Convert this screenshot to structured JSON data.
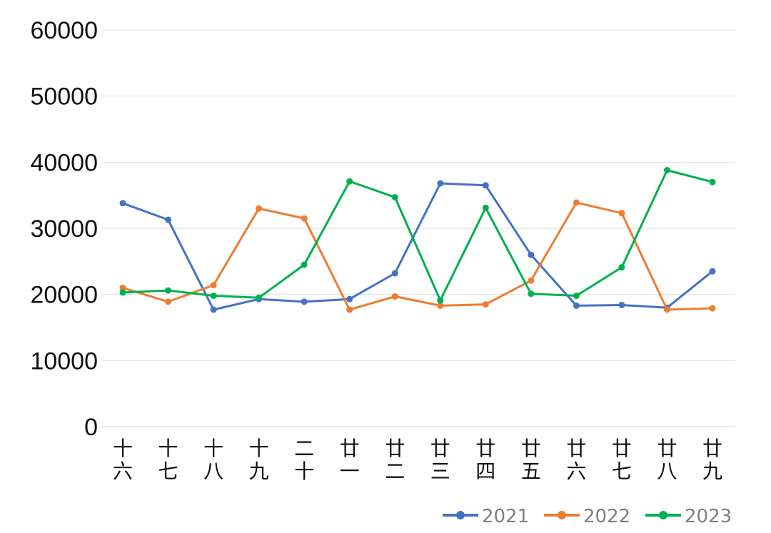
{
  "chart_data": {
    "type": "line",
    "title": "",
    "xlabel": "",
    "ylabel": "",
    "categories": [
      "十六",
      "十七",
      "十八",
      "十九",
      "二十",
      "廿一",
      "廿二",
      "廿三",
      "廿四",
      "廿五",
      "廿六",
      "廿七",
      "廿八",
      "廿九"
    ],
    "ylim": [
      0,
      60000
    ],
    "yticks": [
      "0",
      "10000",
      "20000",
      "30000",
      "40000",
      "50000",
      "60000"
    ],
    "grid": true,
    "legend_position": "bottom-right",
    "series": [
      {
        "name": "2021",
        "color": "#4472c4",
        "values": [
          33800,
          31300,
          17700,
          19300,
          18900,
          19300,
          23200,
          36800,
          36500,
          26000,
          18300,
          18400,
          18000,
          23500
        ]
      },
      {
        "name": "2022",
        "color": "#ed7d31",
        "values": [
          21000,
          18900,
          21400,
          33000,
          31500,
          17700,
          19700,
          18300,
          18500,
          22100,
          33900,
          32300,
          17700,
          17900
        ]
      },
      {
        "name": "2023",
        "color": "#00b050",
        "values": [
          20300,
          20600,
          19800,
          19500,
          24500,
          37100,
          34700,
          19100,
          33100,
          20100,
          19800,
          24100,
          38800,
          37000
        ]
      }
    ]
  }
}
